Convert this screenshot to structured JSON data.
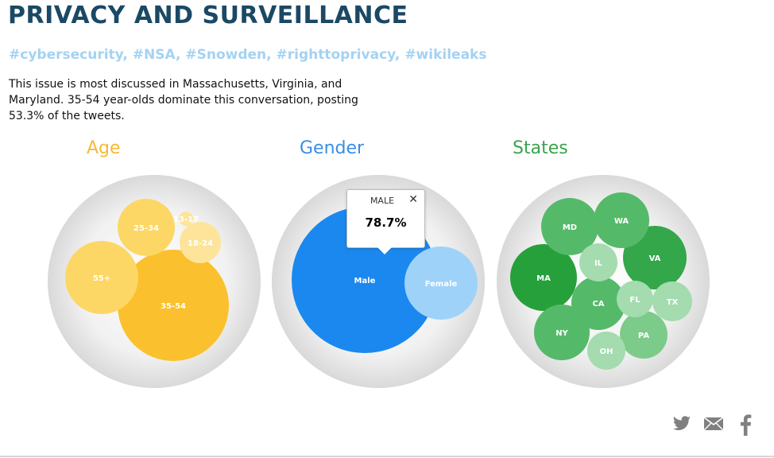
{
  "header": {
    "title": "PRIVACY AND SURVEILLANCE",
    "hashtags": "#cybersecurity, #NSA, #Snowden, #righttoprivacy, #wikileaks",
    "description": "This issue is most discussed in Massachusetts, Virginia, and Maryland. 35-54 year-olds dominate this conversation, posting 53.3% of the tweets."
  },
  "colors": {
    "age": "#f6b836",
    "gender": "#3a8ee6",
    "states": "#3aa34d",
    "title": "#1b4965",
    "hashtags": "#a4d2f2"
  },
  "chart_data": [
    {
      "type": "bubble",
      "title": "Age",
      "categories": [
        "35-54",
        "55+",
        "25-34",
        "18-24",
        "13-17"
      ],
      "values": [
        53.3,
        21.5,
        12.5,
        6.0,
        1.3
      ],
      "colors": [
        "#fbc02d",
        "#fcd766",
        "#fcd766",
        "#fde49a",
        "#fde49a"
      ]
    },
    {
      "type": "bubble",
      "title": "Gender",
      "categories": [
        "Male",
        "Female"
      ],
      "values": [
        78.7,
        21.3
      ],
      "colors": [
        "#1a88ee",
        "#9fd2f8"
      ],
      "tooltip": {
        "label": "MALE",
        "value": "78.7%",
        "close": "✕"
      }
    },
    {
      "type": "bubble",
      "title": "States",
      "categories": [
        "MA",
        "VA",
        "MD",
        "WA",
        "NY",
        "CA",
        "PA",
        "OH",
        "TX",
        "FL",
        "IL"
      ],
      "values": [
        17,
        17,
        14,
        13,
        13,
        12,
        10,
        7,
        7,
        6,
        6
      ],
      "colors": [
        "#26a03b",
        "#33a74a",
        "#55b96a",
        "#55b96a",
        "#55b96a",
        "#55b96a",
        "#7ccb8b",
        "#a4dbaf",
        "#a4dbaf",
        "#a4dbaf",
        "#a4dbaf"
      ]
    }
  ],
  "share": {
    "twitter": "twitter-icon",
    "email": "email-icon",
    "facebook": "facebook-icon"
  }
}
